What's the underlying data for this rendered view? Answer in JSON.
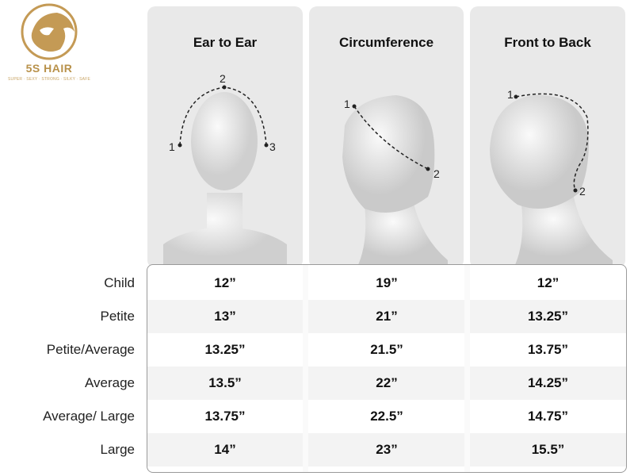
{
  "brand": {
    "name": "5S HAIR",
    "tagline": "SUPER · SEXY · STRONG · SILKY · SAFE",
    "color": "#b8914a"
  },
  "columns": [
    {
      "title": "Ear to Ear",
      "points": [
        "1",
        "2",
        "3"
      ]
    },
    {
      "title": "Circumference",
      "points": [
        "1",
        "2"
      ]
    },
    {
      "title": "Front to Back",
      "points": [
        "1",
        "2"
      ]
    }
  ],
  "rows": [
    {
      "label": "Child",
      "values": [
        "12”",
        "19”",
        "12”"
      ]
    },
    {
      "label": "Petite",
      "values": [
        "13”",
        "21”",
        "13.25”"
      ]
    },
    {
      "label": "Petite/Average",
      "values": [
        "13.25”",
        "21.5”",
        "13.75”"
      ]
    },
    {
      "label": "Average",
      "values": [
        "13.5”",
        "22”",
        "14.25”"
      ]
    },
    {
      "label": "Average/ Large",
      "values": [
        "13.75”",
        "22.5”",
        "14.75”"
      ]
    },
    {
      "label": "Large",
      "values": [
        "14”",
        "23”",
        "15.5”"
      ]
    }
  ]
}
